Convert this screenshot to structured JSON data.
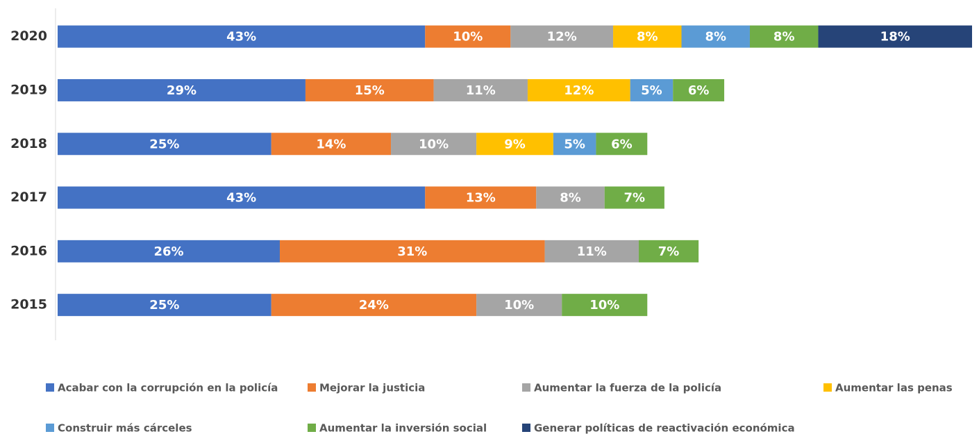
{
  "chart_data": {
    "type": "stacked-barh",
    "categories": [
      "2020",
      "2019",
      "2018",
      "2017",
      "2016",
      "2015"
    ],
    "series": [
      {
        "name": "Acabar con la corrupción en la policía",
        "color": "#4472c4",
        "values": [
          43,
          29,
          25,
          43,
          26,
          25
        ],
        "value_labels": [
          "43%",
          "29%",
          "25%",
          "43%",
          "26%",
          "25%"
        ]
      },
      {
        "name": "Mejorar la justicia",
        "color": "#ed7d31",
        "values": [
          10,
          15,
          14,
          13,
          31,
          24
        ],
        "value_labels": [
          "10%",
          "15%",
          "14%",
          "13%",
          "31%",
          "24%"
        ]
      },
      {
        "name": "Aumentar la fuerza de la policía",
        "color": "#a5a5a5",
        "values": [
          12,
          11,
          10,
          8,
          11,
          10
        ],
        "value_labels": [
          "12%",
          "11%",
          "10%",
          "8%",
          "11%",
          "10%"
        ]
      },
      {
        "name": "Aumentar las penas",
        "color": "#ffc000",
        "values": [
          8,
          12,
          9,
          null,
          null,
          null
        ],
        "value_labels": [
          "8%",
          "12%",
          "9%",
          null,
          null,
          null
        ]
      },
      {
        "name": "Construir más cárceles",
        "color": "#5b9bd5",
        "values": [
          8,
          5,
          5,
          null,
          null,
          null
        ],
        "value_labels": [
          "8%",
          "5%",
          "5%",
          null,
          null,
          null
        ]
      },
      {
        "name": "Aumentar la inversión social",
        "color": "#70ad47",
        "values": [
          8,
          6,
          6,
          7,
          7,
          10
        ],
        "value_labels": [
          "8%",
          "6%",
          "6%",
          "7%",
          "7%",
          "10%"
        ]
      },
      {
        "name": "Generar políticas de reactivación económica",
        "color": "#264478",
        "values": [
          18,
          null,
          null,
          null,
          null,
          null
        ],
        "value_labels": [
          "18%",
          null,
          null,
          null,
          null,
          null
        ]
      }
    ]
  }
}
